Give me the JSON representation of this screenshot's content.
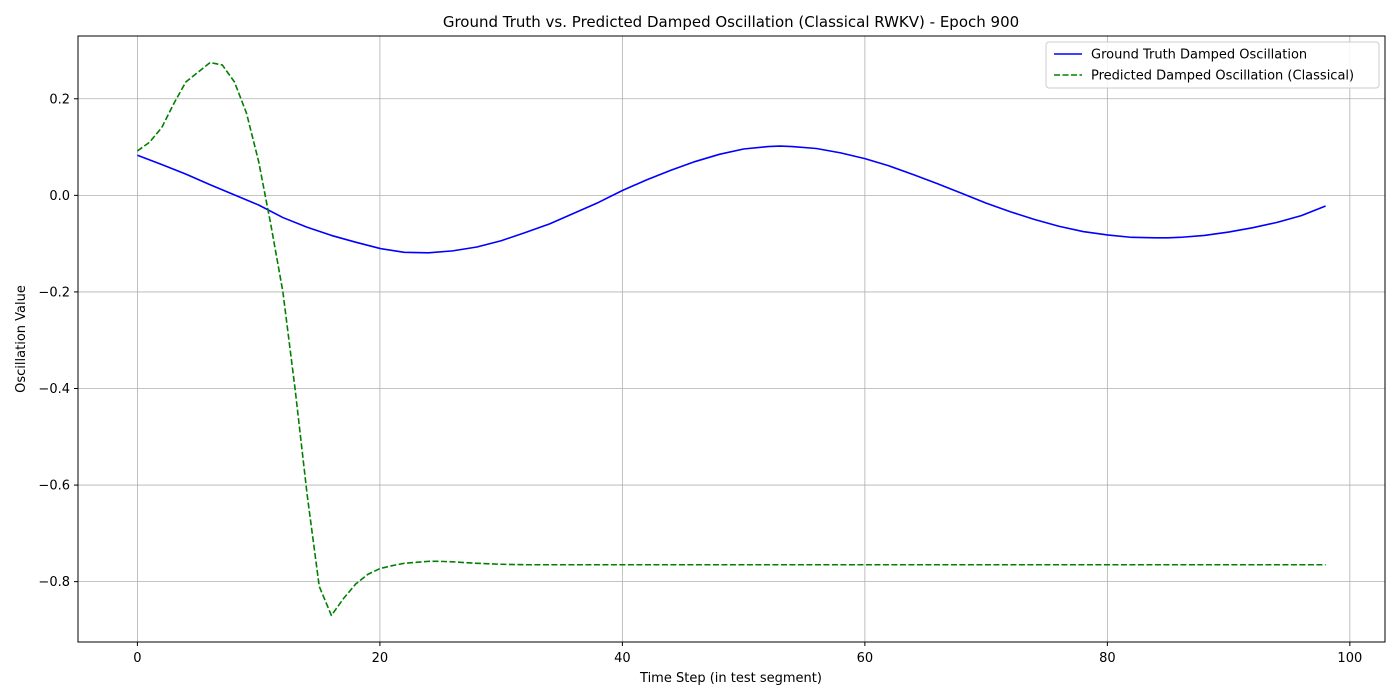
{
  "chart_data": {
    "type": "line",
    "title": "Ground Truth vs. Predicted Damped Oscillation (Classical RWKV) - Epoch 900",
    "xlabel": "Time Step (in test segment)",
    "ylabel": "Oscillation Value",
    "xlim": [
      -4.9,
      102.9
    ],
    "ylim": [
      -0.925,
      0.33
    ],
    "xticks": [
      0,
      20,
      40,
      60,
      80,
      100
    ],
    "xtick_labels": [
      "0",
      "20",
      "40",
      "60",
      "80",
      "100"
    ],
    "yticks": [
      0.2,
      0.0,
      -0.2,
      -0.4,
      -0.6,
      -0.8
    ],
    "ytick_labels": [
      "0.2",
      "0.0",
      "−0.2",
      "−0.4",
      "−0.6",
      "−0.8"
    ],
    "grid": true,
    "legend_position": "top-right",
    "series": [
      {
        "name": "Ground Truth Damped Oscillation",
        "color": "#0000ff",
        "style": "solid",
        "x": [
          0,
          2,
          4,
          6,
          8,
          10,
          12,
          14,
          16,
          18,
          20,
          22,
          24,
          26,
          28,
          30,
          32,
          34,
          36,
          38,
          40,
          42,
          44,
          46,
          48,
          50,
          52,
          53,
          54,
          56,
          58,
          60,
          62,
          64,
          66,
          68,
          70,
          72,
          74,
          76,
          78,
          80,
          82,
          84,
          85,
          86,
          88,
          90,
          92,
          94,
          96,
          98
        ],
        "y": [
          0.083,
          0.064,
          0.044,
          0.022,
          0.001,
          -0.02,
          -0.046,
          -0.066,
          -0.083,
          -0.097,
          -0.11,
          -0.118,
          -0.119,
          -0.115,
          -0.107,
          -0.094,
          -0.077,
          -0.059,
          -0.037,
          -0.015,
          0.01,
          0.032,
          0.052,
          0.07,
          0.085,
          0.096,
          0.101,
          0.102,
          0.101,
          0.097,
          0.088,
          0.076,
          0.061,
          0.043,
          0.024,
          0.004,
          -0.016,
          -0.034,
          -0.05,
          -0.064,
          -0.075,
          -0.082,
          -0.087,
          -0.088,
          -0.088,
          -0.087,
          -0.083,
          -0.076,
          -0.067,
          -0.056,
          -0.042,
          -0.022
        ]
      },
      {
        "name": "Predicted Damped Oscillation (Classical)",
        "color": "#008000",
        "style": "dashed",
        "x": [
          0,
          1,
          2,
          3,
          4,
          5,
          6,
          7,
          8,
          9,
          10,
          11,
          12,
          13,
          14,
          15,
          16,
          17,
          18,
          19,
          20,
          21,
          22,
          23,
          24,
          25,
          26,
          28,
          30,
          32,
          35,
          40,
          50,
          60,
          70,
          80,
          90,
          98
        ],
        "y": [
          0.092,
          0.11,
          0.14,
          0.19,
          0.235,
          0.255,
          0.275,
          0.27,
          0.235,
          0.17,
          0.07,
          -0.06,
          -0.2,
          -0.4,
          -0.62,
          -0.81,
          -0.87,
          -0.835,
          -0.805,
          -0.785,
          -0.773,
          -0.767,
          -0.762,
          -0.76,
          -0.758,
          -0.758,
          -0.759,
          -0.762,
          -0.764,
          -0.765,
          -0.765,
          -0.765,
          -0.765,
          -0.765,
          -0.765,
          -0.765,
          -0.765,
          -0.765
        ]
      }
    ]
  }
}
